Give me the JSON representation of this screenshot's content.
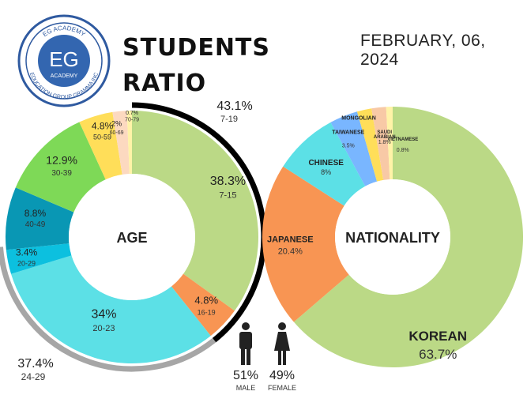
{
  "header": {
    "title_line1": "STUDENTS",
    "title_line2": "RATIO",
    "date": "FEBRUARY, 06, 2024"
  },
  "logo": {
    "letters": "EG",
    "top_text": "EG ACADEMY",
    "bottom_text": "EDUCATION GROUP GRAMMA INC",
    "sub": "ACADEMY",
    "ring_color": "#2f5aa0",
    "fill_color": "#3366b0"
  },
  "chart_data": [
    {
      "type": "pie",
      "title": "AGE",
      "donut": true,
      "slices": [
        {
          "label": "7-15",
          "value": 38.3,
          "display": "38.3%",
          "color": "#bbd986"
        },
        {
          "label": "16-19",
          "value": 4.8,
          "display": "4.8%",
          "color": "#f89553"
        },
        {
          "label": "20-23",
          "value": 34,
          "display": "34%",
          "color": "#5ce0e6"
        },
        {
          "label": "20-29",
          "value": 3.4,
          "display": "3.4%",
          "color": "#0cc0df"
        },
        {
          "label": "40-49",
          "value": 8.8,
          "display": "8.8%",
          "color": "#0997b4"
        },
        {
          "label": "30-39",
          "value": 12.9,
          "display": "12.9%",
          "color": "#7ed957"
        },
        {
          "label": "50-59",
          "value": 4.8,
          "display": "4.8%",
          "color": "#ffde59"
        },
        {
          "label": "60-69",
          "value": 2,
          "display": "2%",
          "color": "#fcd9c0"
        },
        {
          "label": "70-79",
          "value": 0.7,
          "display": "0.7%",
          "color": "#fff3a8"
        }
      ],
      "groups": [
        {
          "display": "43.1%",
          "label": "7-19",
          "color": "#000000"
        },
        {
          "display": "37.4%",
          "label": "24-29",
          "color": "#a6a6a6"
        }
      ]
    },
    {
      "type": "pie",
      "title": "NATIONALITY",
      "donut": true,
      "slices": [
        {
          "label": "KOREAN",
          "value": 63.7,
          "display": "63.7%",
          "color": "#bbd986"
        },
        {
          "label": "JAPANESE",
          "value": 20.4,
          "display": "20.4%",
          "color": "#f89553"
        },
        {
          "label": "CHINESE",
          "value": 8,
          "display": "8%",
          "color": "#5ce0e6"
        },
        {
          "label": "TAIWANESE",
          "value": 3.5,
          "display": "3.5%",
          "color": "#79b6ff"
        },
        {
          "label": "MONGOLIAN",
          "value": 1.8,
          "display": "",
          "color": "#ffde59"
        },
        {
          "label": "SAUDI ARABIAN",
          "value": 1.8,
          "display": "1.8%",
          "color": "#f8c9a6"
        },
        {
          "label": "VIETNAMESE",
          "value": 0.8,
          "display": "0.8%",
          "color": "#fff3a8"
        }
      ]
    }
  ],
  "gender": {
    "male_pct": "51%",
    "male_label": "MALE",
    "female_pct": "49%",
    "female_label": "FEMALE"
  }
}
